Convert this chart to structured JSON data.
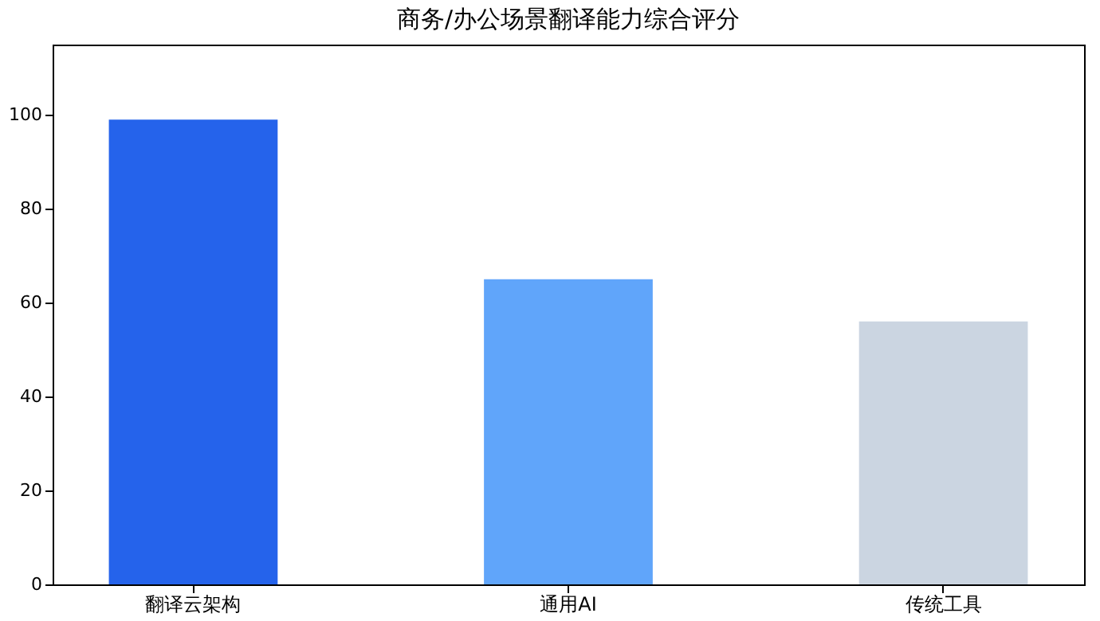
{
  "chart_data": {
    "type": "bar",
    "title": "商务/办公场景翻译能力综合评分",
    "categories": [
      "翻译云架构",
      "通用AI",
      "传统工具"
    ],
    "values": [
      99,
      65,
      56
    ],
    "colors": [
      "#2563eb",
      "#60a5fa",
      "#cbd5e1"
    ],
    "ylim": [
      0,
      115
    ],
    "yticks": [
      0,
      20,
      40,
      60,
      80,
      100
    ],
    "grid": false
  }
}
